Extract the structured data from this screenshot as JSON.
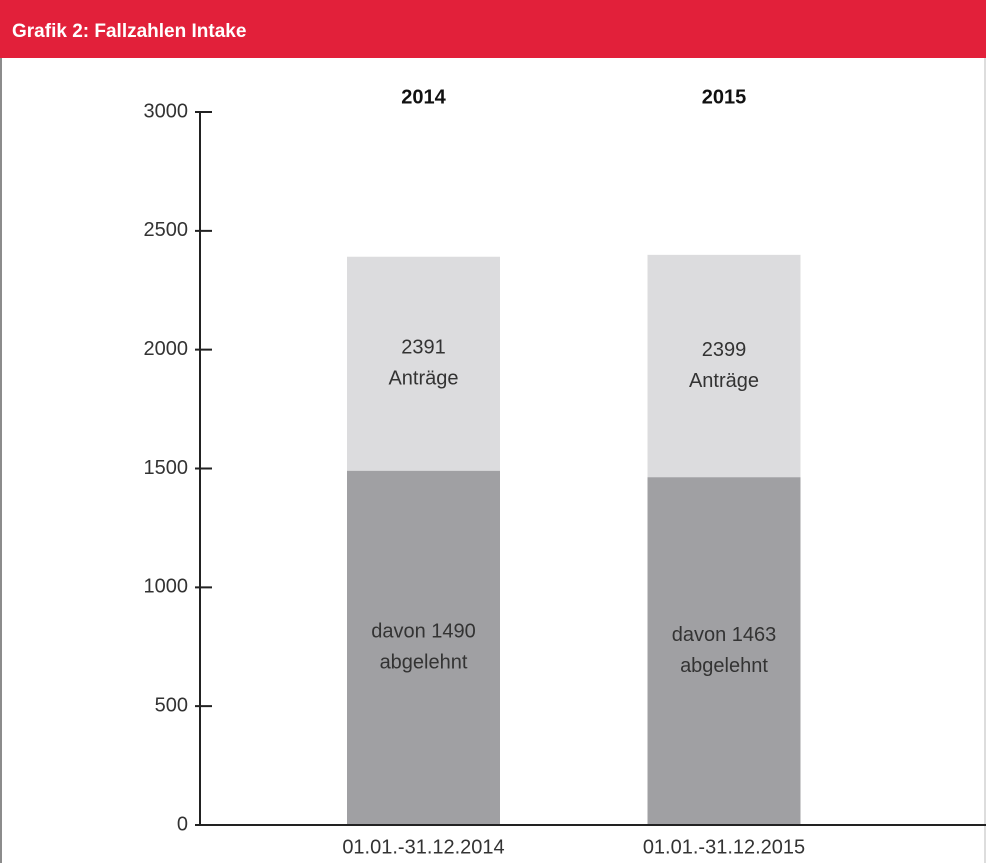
{
  "chart_data": {
    "type": "bar",
    "title": "Grafik 2: Fallzahlen Intake",
    "headers": [
      "2014",
      "2015"
    ],
    "categories": [
      "01.01.-31.12.2014",
      "01.01.-31.12.2015"
    ],
    "series": [
      {
        "color": "#dcdcde",
        "values": [
          2391,
          2399
        ],
        "value_labels": [
          [
            "2391",
            "Anträge"
          ],
          [
            "2399",
            "Anträge"
          ]
        ]
      },
      {
        "color": "#a0a0a3",
        "values": [
          1490,
          1463
        ],
        "value_labels": [
          [
            "davon 1490",
            "abgelehnt"
          ],
          [
            "davon 1463",
            "abgelehnt"
          ]
        ]
      }
    ],
    "ylim": [
      0,
      3000
    ],
    "yticks": [
      0,
      500,
      1000,
      1500,
      2000,
      2500,
      3000
    ]
  }
}
